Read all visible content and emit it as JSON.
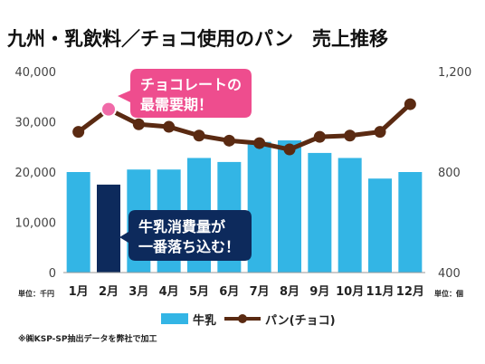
{
  "chart_data": {
    "type": "bar",
    "title": "九州・乳飲料／チョコ使用のパン　売上推移",
    "categories": [
      "1月",
      "2月",
      "3月",
      "4月",
      "5月",
      "6月",
      "7月",
      "8月",
      "9月",
      "10月",
      "11月",
      "12月"
    ],
    "series": [
      {
        "name": "牛乳",
        "type": "bar",
        "axis": "left",
        "color": "#33b5e5",
        "highlight_index": 1,
        "highlight_color": "#0d2a5c",
        "values": [
          20000,
          17500,
          20500,
          20500,
          22800,
          22000,
          26000,
          26300,
          23800,
          22800,
          18700,
          20000
        ]
      },
      {
        "name": "パン(チョコ)",
        "type": "line",
        "axis": "right",
        "color": "#5a2a12",
        "highlight_index": 1,
        "highlight_color": "#f06aa8",
        "values": [
          960,
          1050,
          990,
          980,
          945,
          925,
          915,
          890,
          940,
          945,
          960,
          1070
        ]
      }
    ],
    "y_left": {
      "min": 0,
      "max": 40000,
      "ticks": [
        "0",
        "10,000",
        "20,000",
        "30,000",
        "40,000"
      ],
      "unit": "単位：千円"
    },
    "y_right": {
      "min": 400,
      "max": 1200,
      "ticks": [
        "400",
        "800",
        "1,200"
      ],
      "unit": "単位：個"
    },
    "legend_position": "bottom",
    "grid": false,
    "annotations": {
      "pink": {
        "line1": "チョコレートの",
        "line2": "最需要期！",
        "color": "#ee4d8e"
      },
      "navy": {
        "line1": "牛乳消費量が",
        "line2": "一番落ち込む！",
        "color": "#0d2a5c"
      }
    },
    "note": "※㈱KSP-SP抽出データを弊社で加工"
  }
}
